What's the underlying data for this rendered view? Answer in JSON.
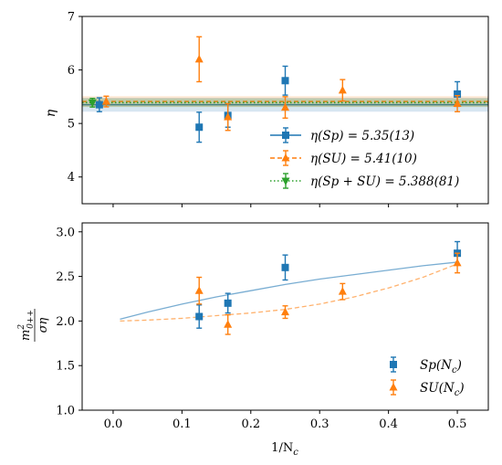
{
  "chart_data": [
    {
      "type": "scatter",
      "panel": "top",
      "ylabel": "η",
      "ylim": [
        3.5,
        7
      ],
      "yticks": [
        4,
        5,
        6,
        7
      ],
      "xlim": [
        -0.045,
        0.545
      ],
      "colors": {
        "Sp": "#1f77b4",
        "SU": "#ff7f0e",
        "SpSU": "#2ca02c"
      },
      "series": [
        {
          "key": "Sp",
          "marker": "square",
          "points": [
            {
              "x": -0.02,
              "y": 5.35,
              "err": 0.13
            },
            {
              "x": 0.125,
              "y": 4.93,
              "err": 0.28
            },
            {
              "x": 0.1667,
              "y": 5.15,
              "err": 0.22
            },
            {
              "x": 0.25,
              "y": 5.8,
              "err": 0.27
            },
            {
              "x": 0.5,
              "y": 5.55,
              "err": 0.23
            }
          ]
        },
        {
          "key": "SU",
          "marker": "triangle-up",
          "points": [
            {
              "x": -0.01,
              "y": 5.41,
              "err": 0.1
            },
            {
              "x": 0.125,
              "y": 6.2,
              "err": 0.42
            },
            {
              "x": 0.1667,
              "y": 5.12,
              "err": 0.25
            },
            {
              "x": 0.25,
              "y": 5.3,
              "err": 0.2
            },
            {
              "x": 0.3333,
              "y": 5.62,
              "err": 0.2
            },
            {
              "x": 0.5,
              "y": 5.37,
              "err": 0.15
            }
          ]
        },
        {
          "key": "SpSU",
          "marker": "triangle-down",
          "points": [
            {
              "x": -0.03,
              "y": 5.388,
              "err": 0.081
            }
          ]
        }
      ],
      "bands": [
        {
          "key": "Sp",
          "value": 5.35,
          "err": 0.13,
          "style": "solid"
        },
        {
          "key": "SU",
          "value": 5.41,
          "err": 0.1,
          "style": "dashed"
        },
        {
          "key": "SpSU",
          "value": 5.388,
          "err": 0.081,
          "style": "dotted"
        }
      ],
      "legend": {
        "placement": "lower-right",
        "entries": [
          {
            "key": "Sp",
            "label": "η(Sp) = 5.35(13)",
            "marker": "square",
            "style": "solid"
          },
          {
            "key": "SU",
            "label": "η(SU) = 5.41(10)",
            "marker": "triangle-up",
            "style": "dashed"
          },
          {
            "key": "SpSU",
            "label": "η(Sp + SU) = 5.388(81)",
            "marker": "triangle-down",
            "style": "dotted"
          }
        ]
      }
    },
    {
      "type": "scatter",
      "panel": "bottom",
      "xlabel": "1/N",
      "xlabel_sub": "c",
      "ylabel": "m²0++ / ση",
      "ylabel_parts": {
        "m": "m",
        "sup": "2",
        "sub": "0++",
        "den": "ση"
      },
      "ylim": [
        1.0,
        3.1
      ],
      "yticks": [
        1.0,
        1.5,
        2.0,
        2.5,
        3.0
      ],
      "xlim": [
        -0.045,
        0.545
      ],
      "xticks": [
        0.0,
        0.1,
        0.2,
        0.3,
        0.4,
        0.5
      ],
      "colors": {
        "Sp": "#1f77b4",
        "SU": "#ff7f0e"
      },
      "series": [
        {
          "key": "Sp",
          "marker": "square",
          "points": [
            {
              "x": 0.125,
              "y": 2.05,
              "err": 0.13
            },
            {
              "x": 0.1667,
              "y": 2.2,
              "err": 0.11
            },
            {
              "x": 0.25,
              "y": 2.6,
              "err": 0.14
            },
            {
              "x": 0.5,
              "y": 2.76,
              "err": 0.13
            }
          ],
          "fit": {
            "style": "solid",
            "x": [
              0.01,
              0.05,
              0.1,
              0.15,
              0.2,
              0.25,
              0.3,
              0.35,
              0.4,
              0.45,
              0.5
            ],
            "y": [
              2.02,
              2.1,
              2.19,
              2.27,
              2.34,
              2.41,
              2.47,
              2.52,
              2.57,
              2.62,
              2.66
            ]
          }
        },
        {
          "key": "SU",
          "marker": "triangle-up",
          "points": [
            {
              "x": 0.125,
              "y": 2.34,
              "err": 0.15
            },
            {
              "x": 0.1667,
              "y": 1.96,
              "err": 0.11
            },
            {
              "x": 0.25,
              "y": 2.1,
              "err": 0.07
            },
            {
              "x": 0.3333,
              "y": 2.33,
              "err": 0.09
            },
            {
              "x": 0.5,
              "y": 2.65,
              "err": 0.11
            }
          ],
          "fit": {
            "style": "dashed",
            "x": [
              0.01,
              0.05,
              0.1,
              0.15,
              0.2,
              0.25,
              0.3,
              0.35,
              0.4,
              0.45,
              0.5
            ],
            "y": [
              2.0,
              2.01,
              2.03,
              2.06,
              2.09,
              2.13,
              2.19,
              2.27,
              2.37,
              2.49,
              2.64
            ]
          }
        }
      ],
      "legend": {
        "placement": "lower-right",
        "entries": [
          {
            "key": "Sp",
            "label_main": "Sp(N",
            "label_sub": "c",
            "label_end": ")",
            "marker": "square"
          },
          {
            "key": "SU",
            "label_main": "SU(N",
            "label_sub": "c",
            "label_end": ")",
            "marker": "triangle-up"
          }
        ]
      }
    }
  ]
}
